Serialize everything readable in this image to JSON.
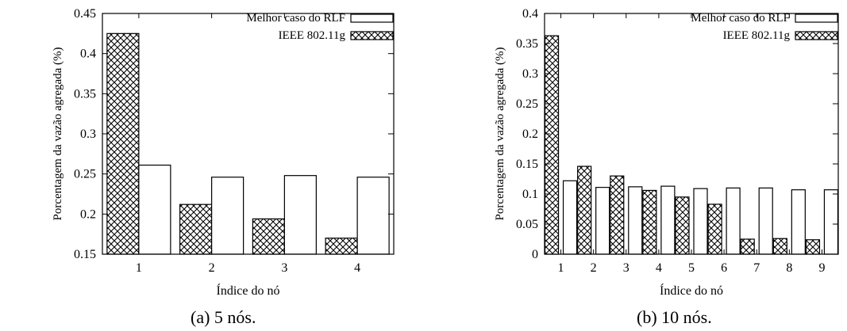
{
  "chart_data": [
    {
      "type": "bar",
      "caption": "(a) 5 nós.",
      "xlabel": "Índice do nó",
      "ylabel": "Porcentagem da vazão agregada (%)",
      "categories": [
        "1",
        "2",
        "3",
        "4"
      ],
      "ylim": [
        0.15,
        0.45
      ],
      "yticks": [
        "0.15",
        "0.2",
        "0.25",
        "0.3",
        "0.35",
        "0.4",
        "0.45"
      ],
      "grid": false,
      "legend": "top-right",
      "series": [
        {
          "name": "IEEE 802.11g",
          "fill": "crosshatch",
          "values": [
            0.425,
            0.212,
            0.194,
            0.17
          ]
        },
        {
          "name": "Melhor caso do RLF",
          "fill": "white",
          "values": [
            0.261,
            0.246,
            0.248,
            0.246
          ]
        }
      ]
    },
    {
      "type": "bar",
      "caption": "(b) 10 nós.",
      "xlabel": "Índice do nó",
      "ylabel": "Porcentagem da vazão agregada (%)",
      "categories": [
        "1",
        "2",
        "3",
        "4",
        "5",
        "6",
        "7",
        "8",
        "9"
      ],
      "ylim": [
        0,
        0.4
      ],
      "yticks": [
        "0",
        "0.05",
        "0.1",
        "0.15",
        "0.2",
        "0.25",
        "0.3",
        "0.35",
        "0.4"
      ],
      "grid": false,
      "legend": "top-right",
      "series": [
        {
          "name": "IEEE 802.11g",
          "fill": "crosshatch",
          "values": [
            0.363,
            0.146,
            0.13,
            0.106,
            0.095,
            0.083,
            0.025,
            0.026,
            0.024
          ]
        },
        {
          "name": "Melhor caso do RLF",
          "fill": "white",
          "values": [
            0.122,
            0.111,
            0.112,
            0.113,
            0.109,
            0.11,
            0.11,
            0.107,
            0.107
          ]
        }
      ]
    }
  ],
  "colors": {
    "frame": "#000000",
    "bar_fill": "#ffffff",
    "hatch": "#000000"
  }
}
